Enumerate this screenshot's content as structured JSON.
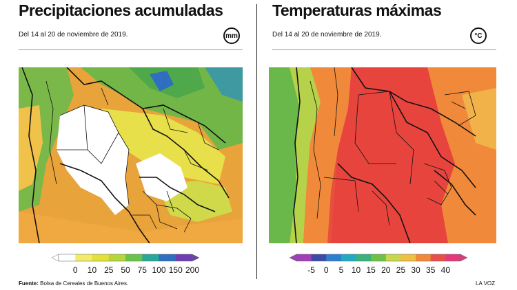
{
  "precip": {
    "title": "Precipitaciones acumuladas",
    "subtitle": "Del 14 al 20 de noviembre de 2019.",
    "unit": "mm",
    "legend": {
      "ticks": [
        "0",
        "10",
        "25",
        "50",
        "75",
        "100",
        "150",
        "200"
      ],
      "colors": [
        "#ffffff",
        "#f3ec6a",
        "#e3e03a",
        "#b7d63a",
        "#6cc24a",
        "#2aa79b",
        "#2e6fc0",
        "#6e3fb0"
      ]
    }
  },
  "temp": {
    "title": "Temperaturas máximas",
    "subtitle": "Del 14 al 20 de noviembre de 2019.",
    "unit": "°C",
    "legend": {
      "ticks": [
        "-5",
        "0",
        "5",
        "10",
        "15",
        "20",
        "25",
        "30",
        "35",
        "40"
      ],
      "colors": [
        "#a23fb8",
        "#3e4aa8",
        "#2f7fd0",
        "#22a9c4",
        "#39b37a",
        "#6ec24a",
        "#c8d84a",
        "#f0c040",
        "#f08a3a",
        "#e8504a",
        "#e23a7a"
      ]
    }
  },
  "footer": {
    "source_label": "Fuente:",
    "source_text": "Bolsa de Cereales de Buenos Aires.",
    "credit": "LA VOZ"
  }
}
